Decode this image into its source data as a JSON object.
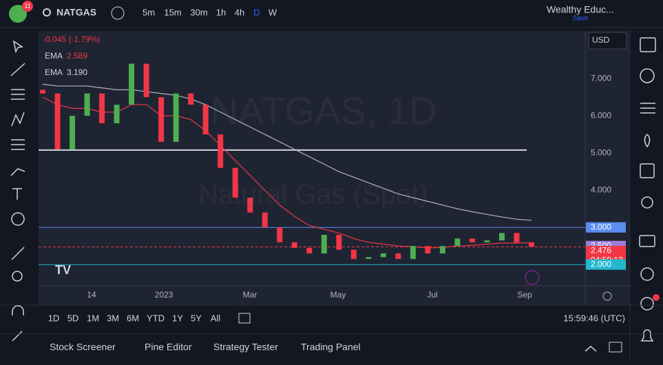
{
  "toolbar": {
    "badge": "11",
    "symbol": "NATGAS",
    "intervals": [
      "5m",
      "15m",
      "30m",
      "1h",
      "4h",
      "D",
      "W"
    ],
    "account": "Wealthy Educ...",
    "save": "Save"
  },
  "legend": {
    "change": "-0.045 (-1.79%)"
  },
  "currency": "USD",
  "watermark": {
    "symbol": "NATGAS, 1D",
    "name": "Natural Gas (Spot)"
  },
  "chart_data": {
    "type": "candlestick",
    "open": [
      6.7,
      6.6,
      5.1,
      6.0,
      6.6,
      5.8,
      6.3,
      7.4,
      6.5,
      5.3,
      6.6,
      6.3,
      5.5,
      4.6,
      3.8,
      3.4,
      3.0,
      2.6,
      2.45,
      2.3,
      2.8,
      2.4,
      2.15,
      2.2,
      2.3,
      2.15,
      2.5,
      2.3,
      2.5,
      2.7,
      2.6,
      2.65,
      2.85,
      2.6
    ],
    "close": [
      6.6,
      5.1,
      6.0,
      6.6,
      5.8,
      6.3,
      7.4,
      6.5,
      5.3,
      6.6,
      6.3,
      5.5,
      4.6,
      3.8,
      3.4,
      3.0,
      2.6,
      2.45,
      2.3,
      2.8,
      2.4,
      2.15,
      2.2,
      2.3,
      2.15,
      2.5,
      2.3,
      2.5,
      2.7,
      2.6,
      2.65,
      2.85,
      2.6,
      2.476
    ],
    "up_color": "#4caf50",
    "down_color": "#f23645",
    "series": [
      {
        "name": "EMA",
        "color": "#f23645",
        "last_label": "2.589",
        "values": [
          6.5,
          6.3,
          6.2,
          6.2,
          6.1,
          6.1,
          6.3,
          6.3,
          6.0,
          6.0,
          5.9,
          5.6,
          5.2,
          4.8,
          4.4,
          4.0,
          3.6,
          3.3,
          3.05,
          2.95,
          2.85,
          2.7,
          2.6,
          2.55,
          2.5,
          2.48,
          2.45,
          2.46,
          2.5,
          2.52,
          2.55,
          2.58,
          2.58,
          2.589
        ]
      },
      {
        "name": "EMA",
        "color": "#b2b5be",
        "last_label": "3.190",
        "values": [
          6.85,
          6.8,
          6.8,
          6.8,
          6.75,
          6.7,
          6.7,
          6.65,
          6.6,
          6.55,
          6.45,
          6.3,
          6.1,
          5.9,
          5.7,
          5.5,
          5.3,
          5.1,
          4.9,
          4.7,
          4.5,
          4.35,
          4.2,
          4.05,
          3.9,
          3.8,
          3.7,
          3.6,
          3.5,
          3.42,
          3.35,
          3.28,
          3.22,
          3.19
        ]
      }
    ],
    "hlines": [
      {
        "value": 5.08,
        "color": "#d1d4dc"
      },
      {
        "value": 3.0,
        "color": "#5b8def"
      },
      {
        "value": 2.0,
        "color": "#22b8cf"
      }
    ],
    "ylim": [
      1.43,
      8.28
    ],
    "yticks": [
      {
        "value": 2,
        "label": "2.000"
      },
      {
        "value": 3,
        "label": "3.000"
      },
      {
        "value": 4,
        "label": "4.000"
      },
      {
        "value": 5,
        "label": "5.000"
      },
      {
        "value": 6,
        "label": "6.000"
      },
      {
        "value": 7,
        "label": "7.000"
      }
    ],
    "price_labels": [
      {
        "value": 3,
        "label": "3.000",
        "color": "#5b8def"
      },
      {
        "value": 2.5,
        "label": "2.500",
        "color": "#9c7fd9"
      },
      {
        "value": 2.476,
        "label": "2.476",
        "color": "#f23645"
      },
      {
        "value": 2,
        "label": "2.000",
        "color": "#22b8cf"
      }
    ],
    "countdown": "04:59:13",
    "time_labels": [
      "14",
      "2023",
      "Mar",
      "May",
      "Jul",
      "Sep"
    ]
  },
  "bottom": {
    "ranges": [
      "1D",
      "5D",
      "1M",
      "3M",
      "6M",
      "YTD",
      "1Y",
      "5Y",
      "All"
    ],
    "clock": "15:59:46 (UTC)",
    "tabs": [
      "Stock Screener",
      "Pine Editor",
      "Strategy Tester",
      "Trading Panel"
    ]
  }
}
